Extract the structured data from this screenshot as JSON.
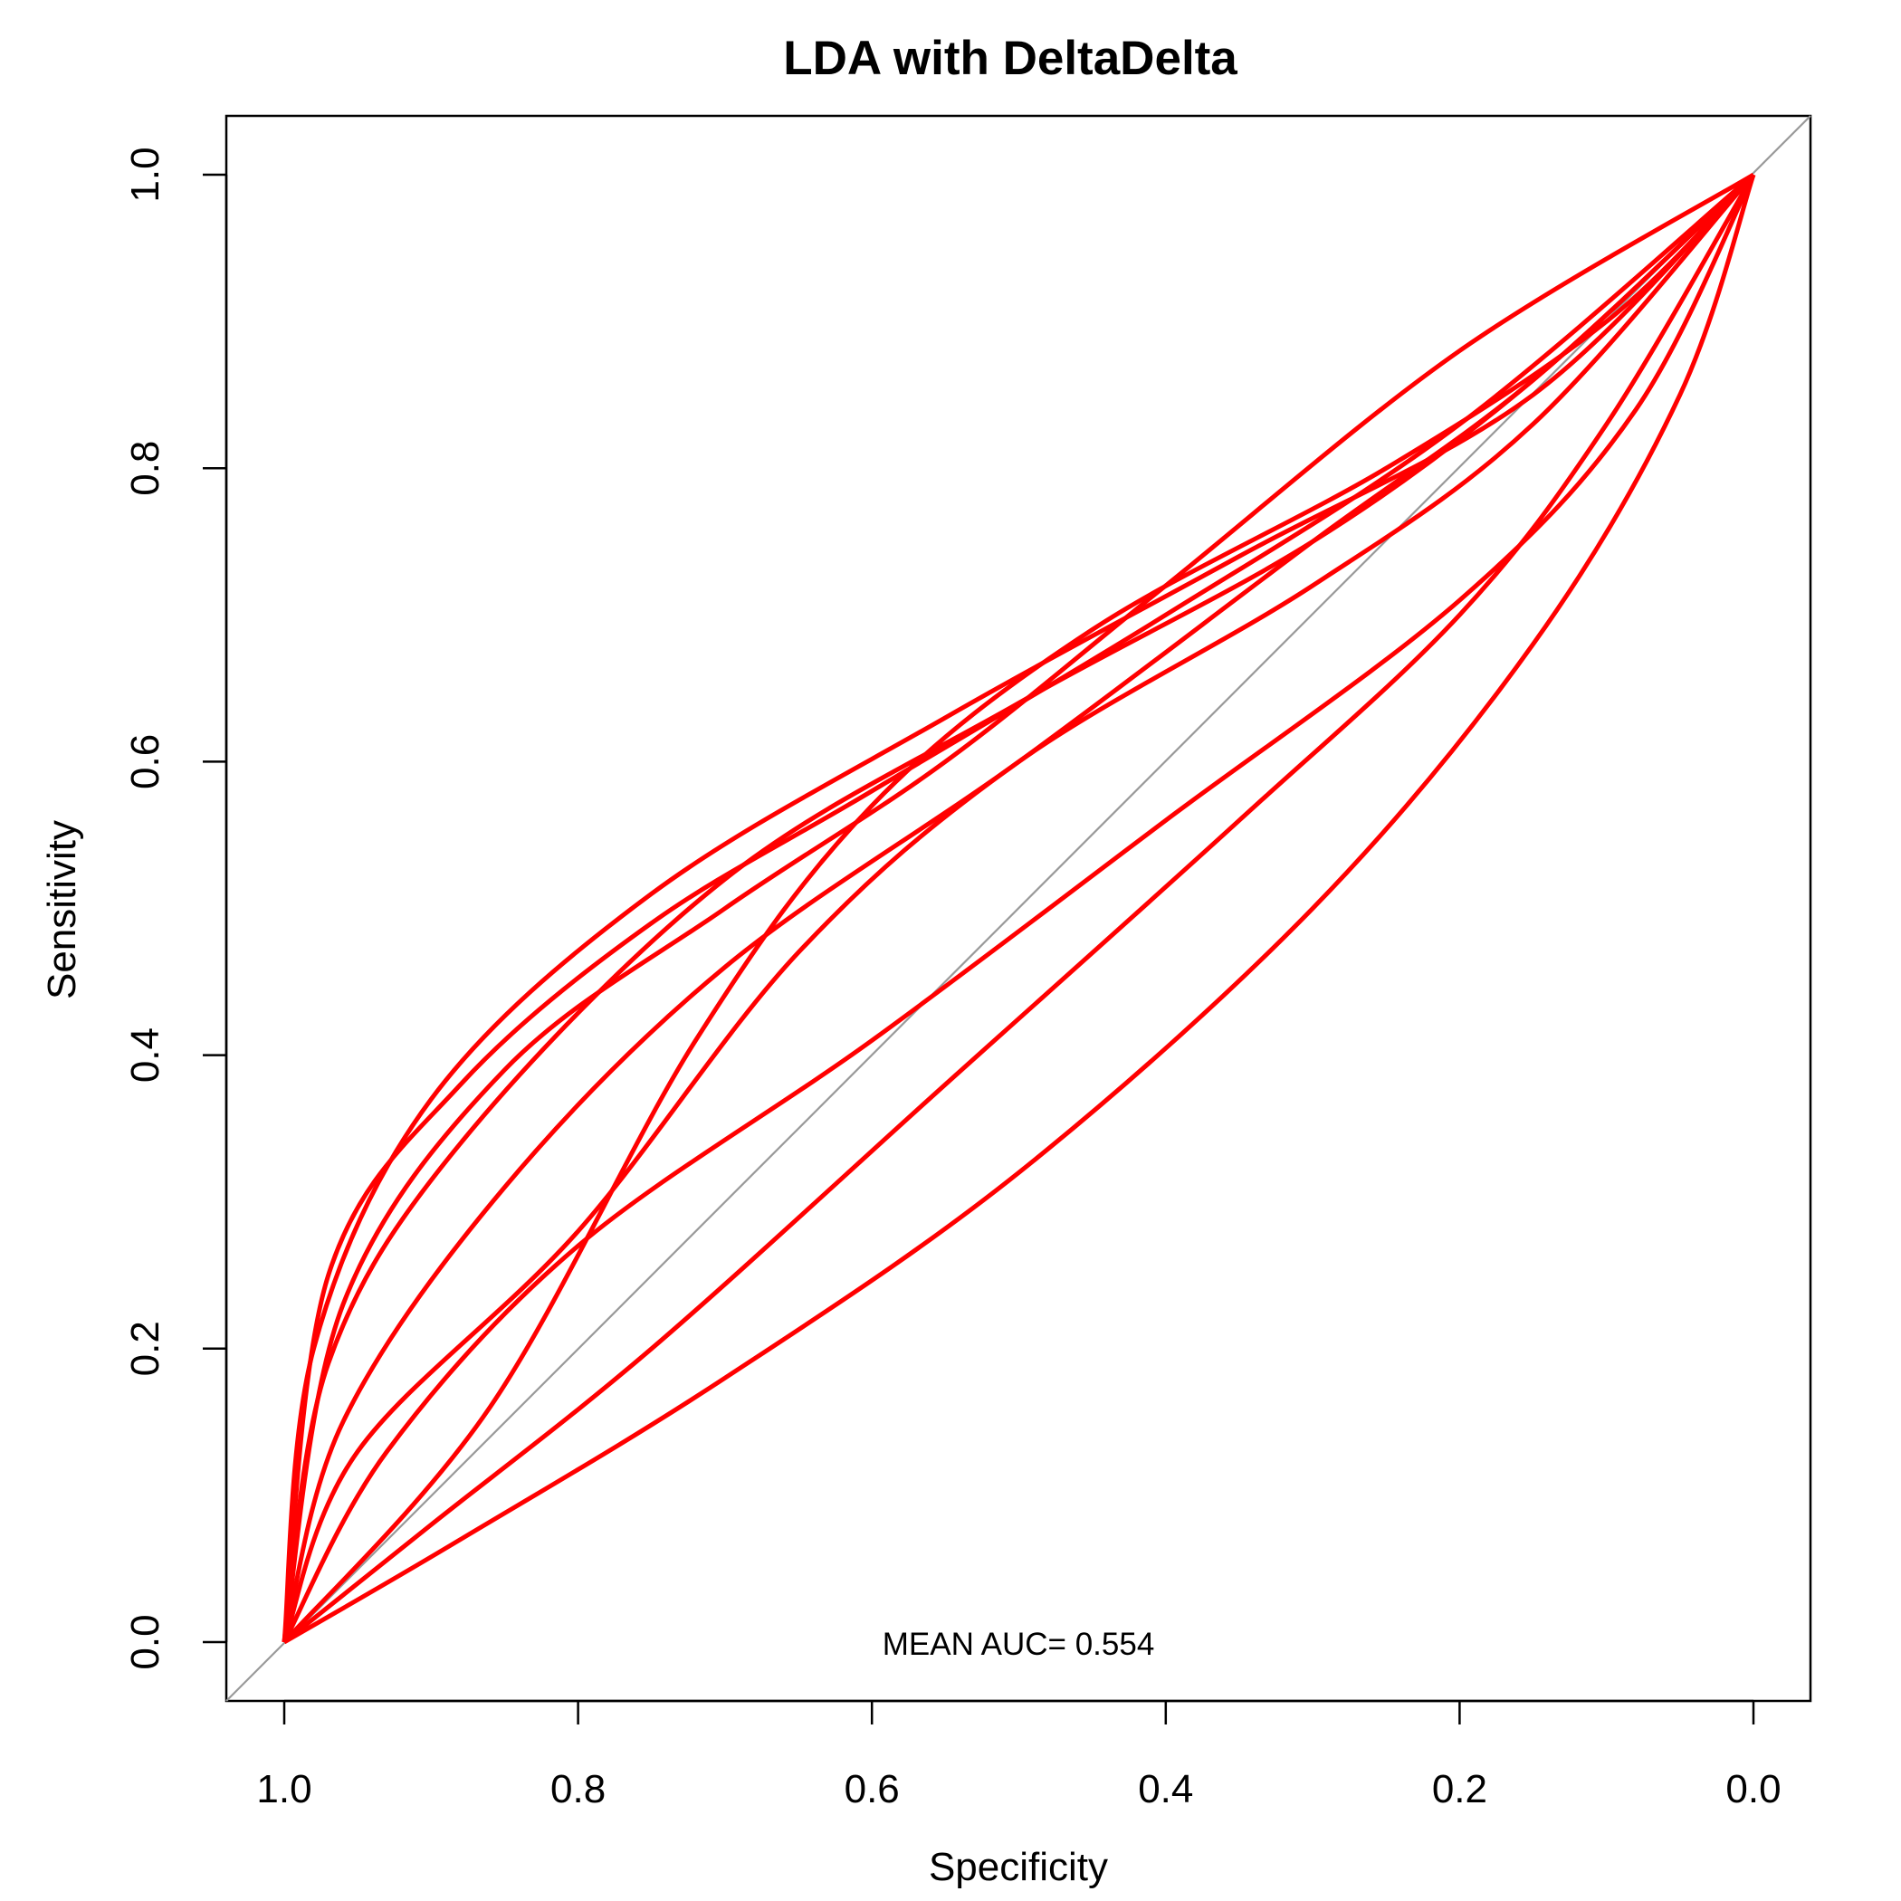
{
  "chart_data": {
    "type": "line",
    "title": "LDA with DeltaDelta",
    "xlabel": "Specificity",
    "ylabel": "Sensitivity",
    "x_reversed": true,
    "xlim": [
      1.0,
      0.0
    ],
    "ylim": [
      0.0,
      1.0
    ],
    "x_ticks": [
      "1.0",
      "0.8",
      "0.6",
      "0.4",
      "0.2",
      "0.0"
    ],
    "y_ticks": [
      "0.0",
      "0.2",
      "0.4",
      "0.6",
      "0.8",
      "1.0"
    ],
    "grid": false,
    "legend": "none",
    "line_color": "#ff0000",
    "diagonal_color": "#999999",
    "annotation": "MEAN AUC= 0.554",
    "series": [
      {
        "points": [
          [
            1.0,
            0.0
          ],
          [
            0.97,
            0.25
          ],
          [
            0.88,
            0.38
          ],
          [
            0.75,
            0.49
          ],
          [
            0.6,
            0.58
          ],
          [
            0.4,
            0.7
          ],
          [
            0.2,
            0.83
          ],
          [
            0.0,
            1.0
          ]
        ]
      },
      {
        "points": [
          [
            1.0,
            0.0
          ],
          [
            0.97,
            0.19
          ],
          [
            0.88,
            0.34
          ],
          [
            0.7,
            0.52
          ],
          [
            0.5,
            0.64
          ],
          [
            0.3,
            0.75
          ],
          [
            0.15,
            0.86
          ],
          [
            0.0,
            1.0
          ]
        ]
      },
      {
        "points": [
          [
            1.0,
            0.0
          ],
          [
            0.96,
            0.15
          ],
          [
            0.85,
            0.31
          ],
          [
            0.7,
            0.46
          ],
          [
            0.5,
            0.6
          ],
          [
            0.3,
            0.75
          ],
          [
            0.15,
            0.86
          ],
          [
            0.0,
            1.0
          ]
        ]
      },
      {
        "points": [
          [
            1.0,
            0.0
          ],
          [
            0.95,
            0.13
          ],
          [
            0.8,
            0.28
          ],
          [
            0.65,
            0.47
          ],
          [
            0.5,
            0.6
          ],
          [
            0.3,
            0.72
          ],
          [
            0.15,
            0.83
          ],
          [
            0.0,
            1.0
          ]
        ]
      },
      {
        "points": [
          [
            1.0,
            0.0
          ],
          [
            0.93,
            0.13
          ],
          [
            0.8,
            0.27
          ],
          [
            0.6,
            0.41
          ],
          [
            0.4,
            0.56
          ],
          [
            0.2,
            0.71
          ],
          [
            0.08,
            0.84
          ],
          [
            0.0,
            1.0
          ]
        ]
      },
      {
        "points": [
          [
            1.0,
            0.0
          ],
          [
            0.86,
            0.16
          ],
          [
            0.72,
            0.41
          ],
          [
            0.6,
            0.57
          ],
          [
            0.45,
            0.69
          ],
          [
            0.25,
            0.8
          ],
          [
            0.1,
            0.9
          ],
          [
            0.0,
            1.0
          ]
        ]
      },
      {
        "points": [
          [
            1.0,
            0.0
          ],
          [
            0.9,
            0.08
          ],
          [
            0.75,
            0.2
          ],
          [
            0.55,
            0.38
          ],
          [
            0.35,
            0.56
          ],
          [
            0.2,
            0.7
          ],
          [
            0.1,
            0.83
          ],
          [
            0.0,
            1.0
          ]
        ]
      },
      {
        "points": [
          [
            1.0,
            0.0
          ],
          [
            0.88,
            0.07
          ],
          [
            0.7,
            0.18
          ],
          [
            0.5,
            0.32
          ],
          [
            0.3,
            0.5
          ],
          [
            0.15,
            0.68
          ],
          [
            0.05,
            0.85
          ],
          [
            0.0,
            1.0
          ]
        ]
      },
      {
        "points": [
          [
            1.0,
            0.0
          ],
          [
            0.96,
            0.23
          ],
          [
            0.85,
            0.39
          ],
          [
            0.7,
            0.5
          ],
          [
            0.55,
            0.6
          ],
          [
            0.4,
            0.72
          ],
          [
            0.2,
            0.88
          ],
          [
            0.0,
            1.0
          ]
        ]
      },
      {
        "points": [
          [
            1.0,
            0.0
          ],
          [
            0.98,
            0.2
          ],
          [
            0.9,
            0.37
          ],
          [
            0.75,
            0.51
          ],
          [
            0.55,
            0.63
          ],
          [
            0.35,
            0.74
          ],
          [
            0.15,
            0.85
          ],
          [
            0.0,
            1.0
          ]
        ]
      }
    ]
  }
}
